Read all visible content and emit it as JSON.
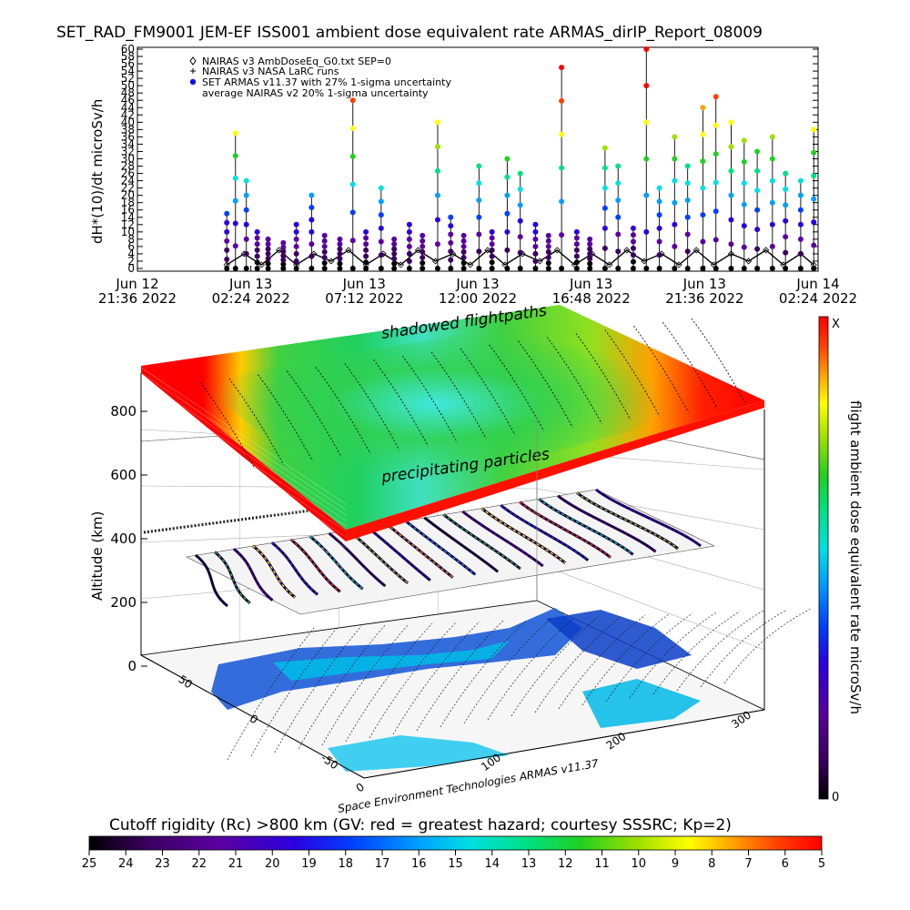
{
  "chart_data": [
    {
      "type": "line",
      "title": "SET_RAD_FM9001   JEM-EF ISS001 ambient dose equivalent rate ARMAS_dirIP_Report_08009",
      "ylabel": "dH*(10)/dt microSv/h",
      "ylim": [
        0,
        60
      ],
      "y_ticks": [
        "0",
        "2",
        "4",
        "6",
        "8",
        "10",
        "12",
        "14",
        "16",
        "18",
        "20",
        "22",
        "24",
        "26",
        "28",
        "30",
        "32",
        "34",
        "36",
        "38",
        "40",
        "42",
        "44",
        "46",
        "48",
        "50",
        "52",
        "54",
        "56",
        "58",
        "60"
      ],
      "x_ticks": [
        {
          "line1": "Jun 12",
          "line2": "21:36 2022"
        },
        {
          "line1": "Jun 13",
          "line2": "02:24 2022"
        },
        {
          "line1": "Jun 13",
          "line2": "07:12 2022"
        },
        {
          "line1": "Jun 13",
          "line2": "12:00 2022"
        },
        {
          "line1": "Jun 13",
          "line2": "16:48 2022"
        },
        {
          "line1": "Jun 13",
          "line2": "21:36 2022"
        },
        {
          "line1": "Jun 14",
          "line2": "02:24 2022"
        }
      ],
      "legend": [
        {
          "symbol": "diamond",
          "label": "NAIRAS v3 AmbDoseEq_G0.txt SEP=0"
        },
        {
          "symbol": "plus",
          "label": "NAIRAS v3 NASA LaRC runs"
        },
        {
          "symbol": "dot",
          "label": "SET ARMAS v11.37 with 27% 1-sigma uncertainty"
        },
        {
          "symbol": "none",
          "label": "average NAIRAS v2 20% 1-sigma uncertainty"
        }
      ],
      "legend_position": "top-left",
      "series": [
        {
          "name": "SET ARMAS v11.37 with 27% 1-sigma uncertainty",
          "x_hours_after_start": [
            1.6,
            2.0,
            2.5,
            3.0,
            3.5,
            4.2,
            4.8,
            5.5,
            6.1,
            6.8,
            7.4,
            8.0,
            8.7,
            9.3,
            10.0,
            10.6,
            11.3,
            11.9,
            12.5,
            13.2,
            13.8,
            14.5,
            15.1,
            15.8,
            16.4,
            17.0,
            17.7,
            18.3,
            19.0,
            19.6,
            20.3,
            20.9,
            21.5,
            22.2,
            22.8,
            23.5,
            24.1,
            24.8,
            25.4,
            26.0,
            26.7,
            27.3,
            28.0,
            28.6
          ],
          "values": [
            15,
            37,
            24,
            10,
            8,
            7,
            12,
            20,
            9,
            8,
            46,
            10,
            22,
            8,
            12,
            9,
            40,
            14,
            9,
            28,
            10,
            30,
            26,
            12,
            9,
            55,
            10,
            8,
            33,
            28,
            11,
            61,
            22,
            36,
            28,
            44,
            47,
            40,
            35,
            32,
            36,
            26,
            24,
            38
          ]
        },
        {
          "name": "NAIRAS v3 AmbDoseEq_G0.txt SEP=0",
          "x_hours_after_start": [
            1.6,
            2.4,
            3.2,
            4.0,
            4.8,
            5.6,
            6.4,
            7.2,
            8.0,
            8.8,
            9.6,
            10.4,
            11.2,
            12.0,
            12.8,
            13.6,
            14.4,
            15.2,
            16.0,
            16.8,
            17.6,
            18.4,
            19.2,
            20.0,
            20.8,
            21.6,
            22.4,
            23.2,
            24.0,
            24.8,
            25.6,
            26.4,
            27.2,
            28.0,
            28.6
          ],
          "values": [
            1,
            4,
            1,
            5,
            1,
            4,
            2,
            5,
            1,
            4,
            1,
            5,
            2,
            4,
            1,
            5,
            1,
            4,
            2,
            5,
            1,
            4,
            1,
            5,
            2,
            4,
            1,
            5,
            1,
            4,
            2,
            5,
            1,
            4,
            1
          ]
        }
      ]
    },
    {
      "type": "heatmap",
      "zlabel": "Altitude (km)",
      "z_ticks": [
        "0",
        "200",
        "400",
        "600",
        "800"
      ],
      "lat_ticks": [
        "50",
        "0",
        "-50"
      ],
      "lon_ticks": [
        "0",
        "100",
        "200",
        "300"
      ],
      "annotations": [
        "shadowed flightpaths",
        "precipitating particles"
      ],
      "credit": "Space Environment Technologies ARMAS v11.37",
      "colorbar": {
        "title": "flight ambient dose equivalent rate microSv/h",
        "top_label": "X",
        "bottom_label": "0",
        "colors": [
          "#000000",
          "#3a0060",
          "#5a00a0",
          "#2a00e0",
          "#0040ff",
          "#00a0ff",
          "#00e0e0",
          "#00e080",
          "#20d020",
          "#a0e000",
          "#ffff00",
          "#ffa000",
          "#ff4000",
          "#ff0000"
        ]
      }
    },
    {
      "type": "heatmap",
      "title": "Cutoff rigidity (Rc) >800 km (GV: red = greatest hazard; courtesy SSSRC; Kp=2)",
      "colorbar_ticks": [
        "25",
        "24",
        "23",
        "22",
        "21",
        "20",
        "19",
        "18",
        "17",
        "16",
        "15",
        "14",
        "13",
        "12",
        "11",
        "10",
        "9",
        "8",
        "7",
        "6",
        "5"
      ],
      "colors": [
        "#000000",
        "#3a0060",
        "#5a00a0",
        "#2a00e0",
        "#0040ff",
        "#00a0ff",
        "#00e0e0",
        "#00e080",
        "#20d020",
        "#a0e000",
        "#ffff00",
        "#ffa000",
        "#ff4000",
        "#ff0000"
      ]
    }
  ]
}
